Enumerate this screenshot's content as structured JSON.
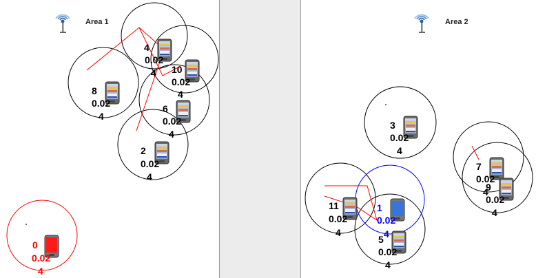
{
  "areas": [
    {
      "title": "Area 1"
    },
    {
      "title": "Area 2"
    }
  ],
  "nodes": [
    {
      "id": "4",
      "value": "0.02",
      "count": "4",
      "state": "normal",
      "area": 1
    },
    {
      "id": "10",
      "value": "0.02",
      "count": "4",
      "state": "normal",
      "area": 1
    },
    {
      "id": "8",
      "value": "0.02",
      "count": "4",
      "state": "normal",
      "area": 1
    },
    {
      "id": "6",
      "value": "0.02",
      "count": "4",
      "state": "normal",
      "area": 1
    },
    {
      "id": "2",
      "value": "0.02",
      "count": "4",
      "state": "normal",
      "area": 1
    },
    {
      "id": "0",
      "value": "0.02",
      "count": "4",
      "state": "alert",
      "area": 1
    },
    {
      "id": "3",
      "value": "0.02",
      "count": "4",
      "state": "normal",
      "area": 2
    },
    {
      "id": "7",
      "value": "0.02",
      "count": "4",
      "state": "normal",
      "area": 2
    },
    {
      "id": "9",
      "value": "0.02",
      "count": "4",
      "state": "normal",
      "area": 2
    },
    {
      "id": "11",
      "value": "0.02",
      "count": "4",
      "state": "normal",
      "area": 2
    },
    {
      "id": "1",
      "value": "0.02",
      "count": "4",
      "state": "selected",
      "area": 2
    },
    {
      "id": "5",
      "value": "0.02",
      "count": "4",
      "state": "normal",
      "area": 2
    }
  ],
  "colors": {
    "normal_ring": "#000000",
    "alert_ring": "#ff0000",
    "selected_ring": "#0000ff",
    "path": "#ff0000",
    "panel_gap": "#ececec"
  },
  "icons": {
    "access_point": "wifi-tower-icon",
    "device": "mobile-device-icon"
  }
}
